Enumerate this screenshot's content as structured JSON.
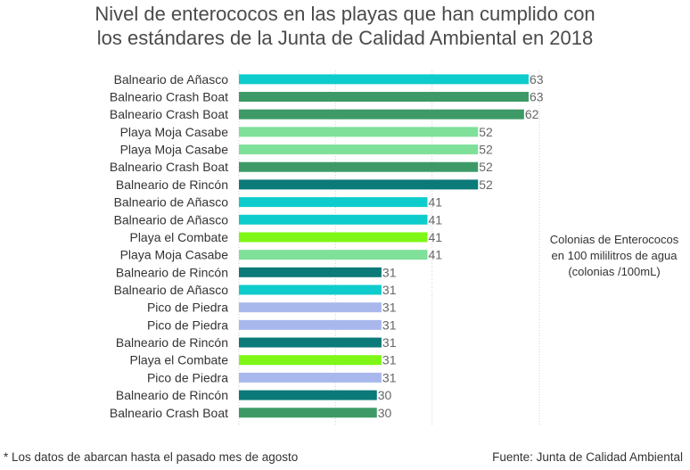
{
  "chart_data": {
    "type": "bar",
    "orientation": "horizontal",
    "title_lines": [
      "Nivel de enterococos en las playas que han cumplido con",
      "los estándares de la Junta de Calidad Ambiental en 2018"
    ],
    "value_axis_label": "Colonias de Enterococos en 100 mililitros de agua (colonias /100mL)",
    "value_axis_label_lines": [
      "Colonias de Enterococos",
      "en 100 mililitros de agua",
      "(colonias /100mL)"
    ],
    "xlim": [
      0,
      63
    ],
    "grid": true,
    "categories": [
      "Balneario de Añasco",
      "Balneario Crash Boat",
      "Balneario Crash Boat",
      "Playa Moja Casabe",
      "Playa Moja Casabe",
      "Balneario Crash Boat",
      "Balneario de Rincón",
      "Balneario de Añasco",
      "Balneario de Añasco",
      "Playa el Combate",
      "Playa Moja Casabe",
      "Balneario de Rincón",
      "Balneario de Añasco",
      "Pico de Piedra",
      "Pico de Piedra",
      "Balneario de Rincón",
      "Playa el Combate",
      "Pico de Piedra",
      "Balneario de Rincón",
      "Balneario Crash Boat"
    ],
    "values": [
      63,
      63,
      62,
      52,
      52,
      52,
      52,
      41,
      41,
      41,
      41,
      31,
      31,
      31,
      31,
      31,
      31,
      31,
      30,
      30
    ],
    "value_labels": [
      "63",
      "63",
      "62",
      "52",
      "52",
      "52",
      "52",
      "41",
      "41",
      "41",
      "41",
      "31",
      "31",
      "31",
      "31",
      "31",
      "31",
      "31",
      "30",
      "30"
    ],
    "beach_colors": {
      "Balneario de Añasco": "#0fcccc",
      "Balneario Crash Boat": "#3d9a66",
      "Playa Moja Casabe": "#7fe09a",
      "Balneario de Rincón": "#0b7a78",
      "Playa el Combate": "#7ef716",
      "Pico de Piedra": "#a9b8ec"
    }
  },
  "footnote": "* Los datos de abarcan hasta el pasado mes de agosto",
  "source": "Fuente: Junta de Calidad Ambiental"
}
